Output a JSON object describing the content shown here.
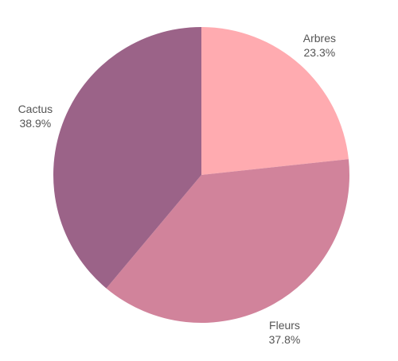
{
  "chart_data": {
    "type": "pie",
    "start_angle_deg": 0,
    "direction": "clockwise",
    "slices": [
      {
        "label": "Arbres",
        "value": 23.3,
        "value_label": "23.3%",
        "color": "#ffabb0"
      },
      {
        "label": "Fleurs",
        "value": 37.8,
        "value_label": "37.8%",
        "color": "#d1839b"
      },
      {
        "label": "Cactus",
        "value": 38.9,
        "value_label": "38.9%",
        "color": "#9b6388"
      }
    ],
    "legend": "none",
    "labels": "outside"
  }
}
